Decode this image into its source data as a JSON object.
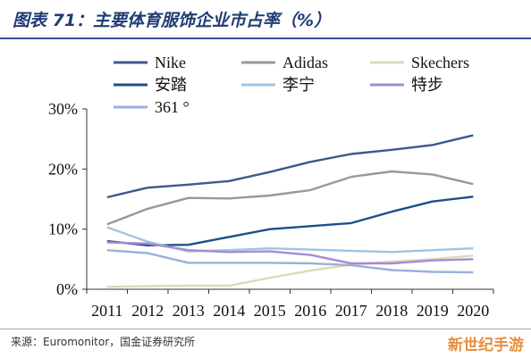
{
  "header": {
    "title": "图表 71：主要体育服饰企业市占率（%）"
  },
  "footer": {
    "source": "来源：Euromonitor，国金证券研究所",
    "watermark": "新世纪手游"
  },
  "chart_data": {
    "type": "line",
    "title": "图表 71：主要体育服饰企业市占率（%）",
    "xlabel": "",
    "ylabel": "",
    "x": [
      "2011",
      "2012",
      "2013",
      "2014",
      "2015",
      "2016",
      "2017",
      "2018",
      "2019",
      "2020"
    ],
    "ylim": [
      0,
      30
    ],
    "yticks": [
      "0%",
      "10%",
      "20%",
      "30%"
    ],
    "ytick_values": [
      0,
      10,
      20,
      30
    ],
    "grid": false,
    "legend_position": "top",
    "series": [
      {
        "name": "Nike",
        "color": "#3c5a8a",
        "values": [
          15.3,
          16.9,
          17.4,
          18.0,
          19.5,
          21.2,
          22.5,
          23.2,
          24.0,
          25.6
        ]
      },
      {
        "name": "Adidas",
        "color": "#999999",
        "values": [
          10.8,
          13.4,
          15.2,
          15.1,
          15.6,
          16.5,
          18.7,
          19.6,
          19.1,
          17.5
        ]
      },
      {
        "name": "Skechers",
        "color": "#d8dcb8",
        "values": [
          0.4,
          0.5,
          0.6,
          0.6,
          1.9,
          3.1,
          4.1,
          4.6,
          5.0,
          5.6
        ]
      },
      {
        "name": "安踏",
        "color": "#1f4e8c",
        "values": [
          8.0,
          7.3,
          7.4,
          8.7,
          10.0,
          10.5,
          11.0,
          12.9,
          14.6,
          15.4
        ]
      },
      {
        "name": "李宁",
        "color": "#9ec4e4",
        "values": [
          10.3,
          7.9,
          6.3,
          6.5,
          6.8,
          6.6,
          6.4,
          6.2,
          6.5,
          6.8
        ]
      },
      {
        "name": "特步",
        "color": "#a48bd6",
        "values": [
          7.8,
          7.6,
          6.5,
          6.2,
          6.3,
          5.7,
          4.3,
          4.3,
          4.8,
          5.0
        ]
      },
      {
        "name": "361 °",
        "color": "#9ab0da",
        "values": [
          6.5,
          6.0,
          4.4,
          4.4,
          4.4,
          4.3,
          4.0,
          3.2,
          2.9,
          2.8
        ]
      }
    ]
  }
}
